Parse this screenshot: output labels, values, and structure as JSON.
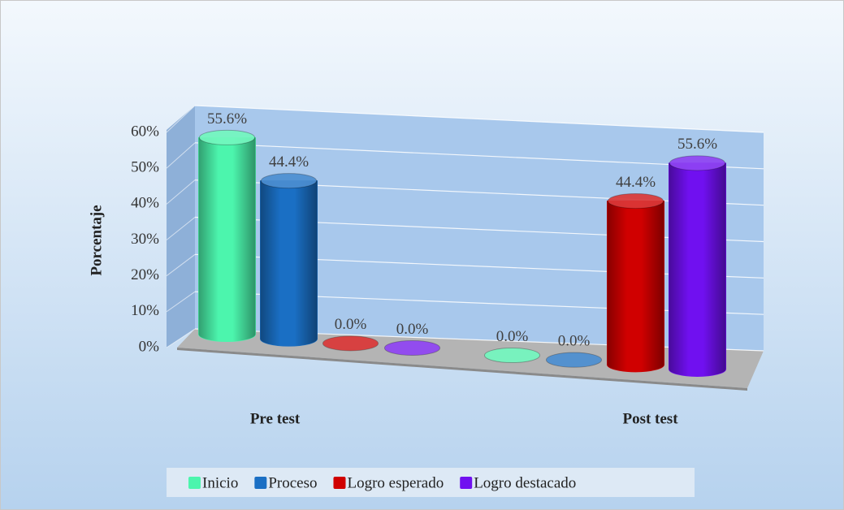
{
  "chart_data": {
    "type": "bar3d",
    "categories": [
      "Pre test",
      "Post test"
    ],
    "y_label": "Porcentaje",
    "ylim": [
      0,
      60
    ],
    "yticks": [
      {
        "value": 0,
        "label": "0%"
      },
      {
        "value": 10,
        "label": "10%"
      },
      {
        "value": 20,
        "label": "20%"
      },
      {
        "value": 30,
        "label": "30%"
      },
      {
        "value": 40,
        "label": "40%"
      },
      {
        "value": 50,
        "label": "50%"
      },
      {
        "value": 60,
        "label": "60%"
      }
    ],
    "grid": true,
    "legend": "bottom",
    "series": [
      {
        "name": "Inicio",
        "color": "#4cf5ad",
        "values": [
          55.6,
          0.0
        ],
        "value_labels": [
          "55.6%",
          "0.0%"
        ]
      },
      {
        "name": "Proceso",
        "color": "#1a6fc4",
        "values": [
          44.4,
          0.0
        ],
        "value_labels": [
          "44.4%",
          "0.0%"
        ]
      },
      {
        "name": "Logro esperado",
        "color": "#d00000",
        "values": [
          0.0,
          44.4
        ],
        "value_labels": [
          "0.0%",
          "44.4%"
        ]
      },
      {
        "name": "Logro destacado",
        "color": "#7010f0",
        "values": [
          0.0,
          55.6
        ],
        "value_labels": [
          "0.0%",
          "55.6%"
        ]
      }
    ]
  }
}
